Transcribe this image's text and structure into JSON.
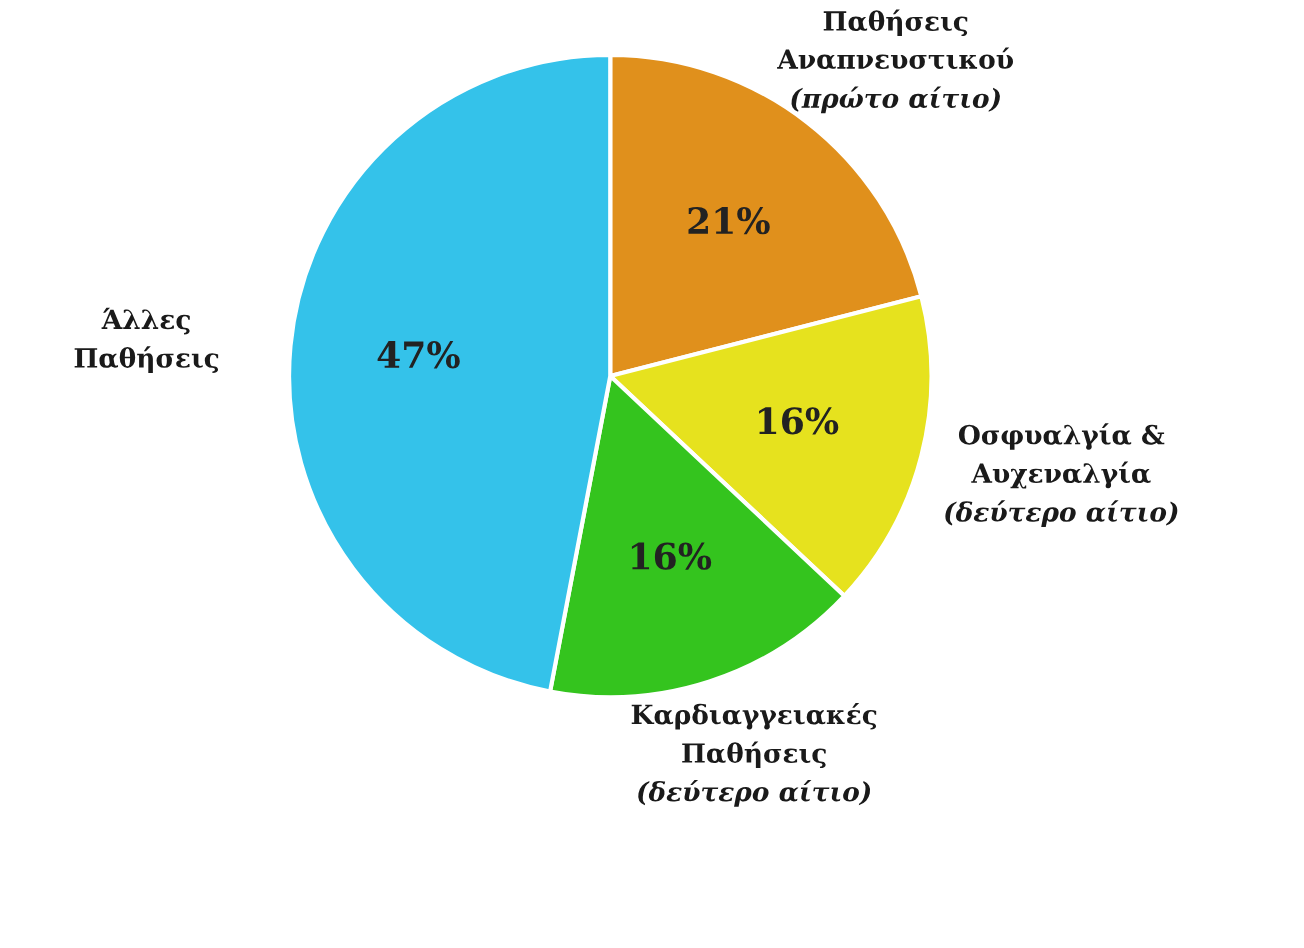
{
  "chart_data": {
    "type": "pie",
    "categories": [
      "Παθήσεις\nΑναπνευστικού\n(πρώτο αίτιο)",
      "Οσφυαλγία &\nΑυχεναλγία\n(δεύτερο αίτιο)",
      "Καρδιαγγειακές\nΠαθήσεις\n(δεύτερο αίτιο)",
      "Άλλες\nΠαθήσεις"
    ],
    "values": [
      21,
      16,
      16,
      47
    ],
    "colors": [
      "#e0901c",
      "#e6e21e",
      "#34c41e",
      "#34c2ea"
    ],
    "value_labels": [
      "21%",
      "16%",
      "16%",
      "47%"
    ]
  }
}
